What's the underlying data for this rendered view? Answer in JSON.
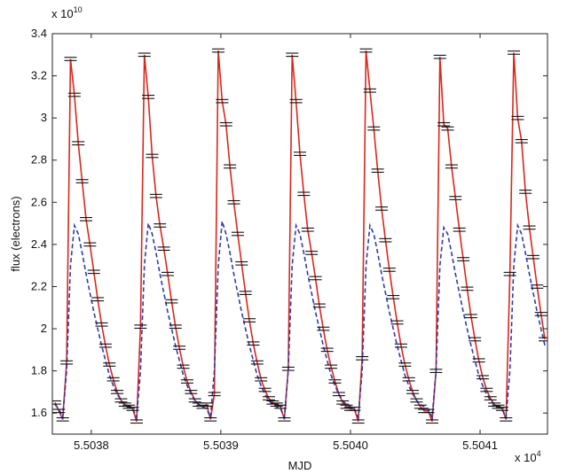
{
  "chart_data": {
    "type": "line",
    "x_label": "MJD",
    "y_label": "flux (electrons)",
    "x_multiplier": {
      "base": "x 10",
      "exponent": "4"
    },
    "y_multiplier": {
      "base": "x 10",
      "exponent": "10"
    },
    "xlim": [
      5.50377,
      5.504152
    ],
    "ylim": [
      1.5,
      3.4
    ],
    "xticks": [
      5.5038,
      5.5039,
      {
        "value": 5.504,
        "label": "5.5040"
      },
      5.5041
    ],
    "yticks": [
      1.6,
      1.8,
      2,
      2.2,
      2.4,
      2.6,
      2.8,
      3,
      3.2,
      3.4
    ],
    "grid": false,
    "x": [
      5.503772,
      5.503775,
      5.503778,
      5.503781,
      5.503784,
      5.503787,
      5.50379,
      5.503793,
      5.503796,
      5.503799,
      5.503802,
      5.503805,
      5.503808,
      5.503811,
      5.503814,
      5.503817,
      5.50382,
      5.503823,
      5.503826,
      5.503829,
      5.503832,
      5.503835,
      5.503838,
      5.503841,
      5.503844,
      5.503847,
      5.50385,
      5.503853,
      5.503856,
      5.503859,
      5.503862,
      5.503865,
      5.503868,
      5.503871,
      5.503874,
      5.503877,
      5.50388,
      5.503883,
      5.503886,
      5.503889,
      5.503892,
      5.503895,
      5.503898,
      5.503901,
      5.503904,
      5.503907,
      5.50391,
      5.503913,
      5.503916,
      5.503919,
      5.503922,
      5.503925,
      5.503928,
      5.503931,
      5.503934,
      5.503937,
      5.50394,
      5.503943,
      5.503946,
      5.503949,
      5.503952,
      5.503955,
      5.503958,
      5.503961,
      5.503964,
      5.503967,
      5.50397,
      5.503973,
      5.503976,
      5.503979,
      5.503982,
      5.503985,
      5.503988,
      5.503991,
      5.503994,
      5.503997,
      5.504,
      5.504003,
      5.504006,
      5.504009,
      5.504012,
      5.504015,
      5.504018,
      5.504021,
      5.504024,
      5.504027,
      5.50403,
      5.504033,
      5.504036,
      5.504039,
      5.504042,
      5.504045,
      5.504048,
      5.504051,
      5.504054,
      5.504057,
      5.50406,
      5.504063,
      5.504066,
      5.504069,
      5.504072,
      5.504075,
      5.504078,
      5.504081,
      5.504084,
      5.504087,
      5.50409,
      5.504093,
      5.504096,
      5.504099,
      5.504102,
      5.504105,
      5.504108,
      5.504111,
      5.504114,
      5.504117,
      5.50412,
      5.504123,
      5.504126,
      5.504129,
      5.504132,
      5.504135,
      5.504138,
      5.504141,
      5.504144,
      5.504147,
      5.50415
    ],
    "series": [
      {
        "color": "#d8281c",
        "marker": "errorbar",
        "marker_color": "#111111",
        "dashed": false,
        "values": [
          1.65,
          1.61,
          1.57,
          1.84,
          3.28,
          3.11,
          2.88,
          2.7,
          2.52,
          2.4,
          2.27,
          2.14,
          2.02,
          1.92,
          1.83,
          1.76,
          1.7,
          1.66,
          1.64,
          1.63,
          1.62,
          1.56,
          2.01,
          3.3,
          3.1,
          2.82,
          2.63,
          2.49,
          2.38,
          2.26,
          2.13,
          2.01,
          1.91,
          1.82,
          1.75,
          1.7,
          1.66,
          1.64,
          1.63,
          1.64,
          1.57,
          1.69,
          3.32,
          3.08,
          2.97,
          2.77,
          2.6,
          2.45,
          2.31,
          2.17,
          2.04,
          1.93,
          1.84,
          1.76,
          1.71,
          1.67,
          1.65,
          1.64,
          1.63,
          1.57,
          1.81,
          3.3,
          3.08,
          2.83,
          2.64,
          2.47,
          2.36,
          2.24,
          2.11,
          2,
          1.9,
          1.82,
          1.75,
          1.69,
          1.65,
          1.63,
          1.62,
          1.62,
          1.56,
          1.86,
          3.32,
          3.13,
          2.95,
          2.75,
          2.57,
          2.42,
          2.28,
          2.15,
          2.03,
          1.92,
          1.83,
          1.76,
          1.7,
          1.66,
          1.63,
          1.61,
          1.61,
          1.56,
          1.8,
          3.29,
          2.97,
          2.95,
          2.77,
          2.62,
          2.47,
          2.33,
          2.19,
          2.06,
          1.95,
          1.85,
          1.77,
          1.71,
          1.67,
          1.64,
          1.63,
          1.62,
          1.57,
          2.26,
          3.31,
          3,
          2.89,
          2.65,
          2.48,
          2.34,
          2.2,
          2.07,
          1.95
        ]
      },
      {
        "color": "#2a3cb4",
        "marker": "none",
        "dashed": true,
        "values": [
          1.64,
          1.62,
          1.58,
          1.8,
          2.3,
          2.49,
          2.45,
          2.36,
          2.26,
          2.17,
          2.08,
          2,
          1.92,
          1.85,
          1.78,
          1.73,
          1.69,
          1.66,
          1.64,
          1.63,
          1.62,
          1.58,
          1.8,
          2.3,
          2.5,
          2.45,
          2.36,
          2.26,
          2.17,
          2.08,
          2,
          1.92,
          1.85,
          1.78,
          1.73,
          1.69,
          1.66,
          1.64,
          1.63,
          1.62,
          1.58,
          1.8,
          2.3,
          2.51,
          2.45,
          2.36,
          2.26,
          2.17,
          2.08,
          2,
          1.92,
          1.85,
          1.78,
          1.73,
          1.69,
          1.66,
          1.64,
          1.63,
          1.62,
          1.58,
          1.8,
          2.3,
          2.49,
          2.45,
          2.36,
          2.26,
          2.17,
          2.08,
          2,
          1.92,
          1.85,
          1.78,
          1.73,
          1.69,
          1.66,
          1.64,
          1.63,
          1.62,
          1.58,
          1.8,
          2.3,
          2.49,
          2.45,
          2.36,
          2.26,
          2.17,
          2.08,
          2,
          1.92,
          1.85,
          1.78,
          1.73,
          1.69,
          1.66,
          1.64,
          1.63,
          1.62,
          1.58,
          1.8,
          2.3,
          2.48,
          2.45,
          2.36,
          2.26,
          2.17,
          2.08,
          2,
          1.92,
          1.85,
          1.78,
          1.73,
          1.69,
          1.66,
          1.64,
          1.63,
          1.62,
          1.58,
          1.8,
          2.3,
          2.49,
          2.45,
          2.36,
          2.26,
          2.17,
          2.08,
          2,
          1.92
        ]
      }
    ]
  }
}
